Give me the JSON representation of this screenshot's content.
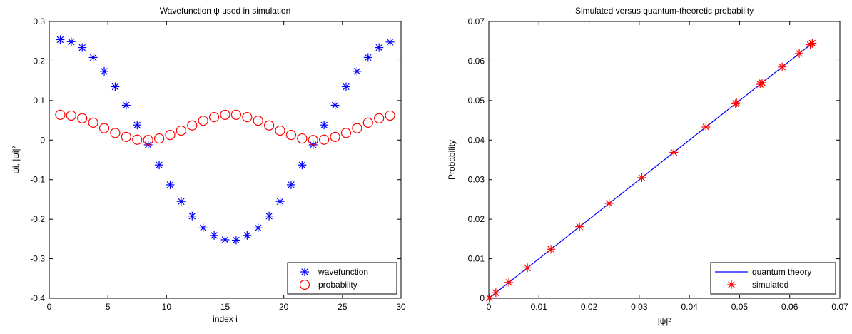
{
  "chart_data": [
    {
      "type": "scatter",
      "title": "Wavefunction ψ used in simulation",
      "xlabel": "index i",
      "ylabel": "ψi, |ψi|²",
      "xlim": [
        0,
        32
      ],
      "ylim": [
        -0.4,
        0.3
      ],
      "xticks": [
        "0",
        "5",
        "10",
        "15",
        "20",
        "25",
        "30"
      ],
      "yticks": [
        "-0.4",
        "-0.3",
        "-0.2",
        "-0.1",
        "0",
        "0.1",
        "0.2",
        "0.3"
      ],
      "legend_position": "bottom-right",
      "grid": false,
      "x": [
        1,
        2,
        3,
        4,
        5,
        6,
        7,
        8,
        9,
        10,
        11,
        12,
        13,
        14,
        15,
        16,
        17,
        18,
        19,
        20,
        21,
        22,
        23,
        24,
        25,
        26,
        27,
        28,
        29,
        30,
        31
      ],
      "series": [
        {
          "name": "wavefunction",
          "marker": "asterisk",
          "color": "#0000ff",
          "values": [
            0.254,
            0.249,
            0.234,
            0.209,
            0.174,
            0.135,
            0.088,
            0.038,
            -0.012,
            -0.063,
            -0.113,
            -0.155,
            -0.192,
            -0.222,
            -0.241,
            -0.252,
            -0.253,
            -0.241,
            -0.222,
            -0.192,
            -0.155,
            -0.113,
            -0.063,
            -0.012,
            0.038,
            0.088,
            0.135,
            0.174,
            0.209,
            0.234,
            0.248
          ]
        },
        {
          "name": "probability",
          "marker": "circle",
          "color": "#ff0000",
          "values": [
            0.064,
            0.062,
            0.055,
            0.044,
            0.03,
            0.018,
            0.008,
            0.001,
            0.0,
            0.004,
            0.013,
            0.024,
            0.037,
            0.049,
            0.058,
            0.064,
            0.064,
            0.058,
            0.049,
            0.037,
            0.024,
            0.013,
            0.004,
            0.0,
            0.001,
            0.008,
            0.018,
            0.03,
            0.044,
            0.055,
            0.062
          ]
        }
      ]
    },
    {
      "type": "line",
      "title": "Simulated versus quantum-theoretic probability",
      "xlabel": "|ψ|²",
      "ylabel": "Probability",
      "xlim": [
        0,
        0.07
      ],
      "ylim": [
        0,
        0.07
      ],
      "xticks": [
        "0",
        "0.01",
        "0.02",
        "0.03",
        "0.04",
        "0.05",
        "0.06",
        "0.07"
      ],
      "yticks": [
        "0",
        "0.01",
        "0.02",
        "0.03",
        "0.04",
        "0.05",
        "0.06",
        "0.07"
      ],
      "legend_position": "bottom-right",
      "grid": false,
      "series": [
        {
          "name": "quantum theory",
          "style": "line",
          "color": "#0000ff",
          "x": [
            0,
            0.0645
          ],
          "y": [
            0,
            0.0645
          ]
        },
        {
          "name": "simulated",
          "style": "asterisk",
          "color": "#ff0000",
          "x": [
            0.0001,
            0.0014,
            0.004,
            0.0077,
            0.0124,
            0.0181,
            0.024,
            0.0305,
            0.0369,
            0.0433,
            0.0492,
            0.0494,
            0.0541,
            0.0545,
            0.0585,
            0.0619,
            0.0641,
            0.0645
          ],
          "y": [
            0.0001,
            0.0014,
            0.004,
            0.0077,
            0.0124,
            0.0181,
            0.024,
            0.0305,
            0.0369,
            0.0433,
            0.0492,
            0.0494,
            0.0541,
            0.0545,
            0.0585,
            0.0619,
            0.0641,
            0.0645
          ]
        }
      ]
    }
  ]
}
